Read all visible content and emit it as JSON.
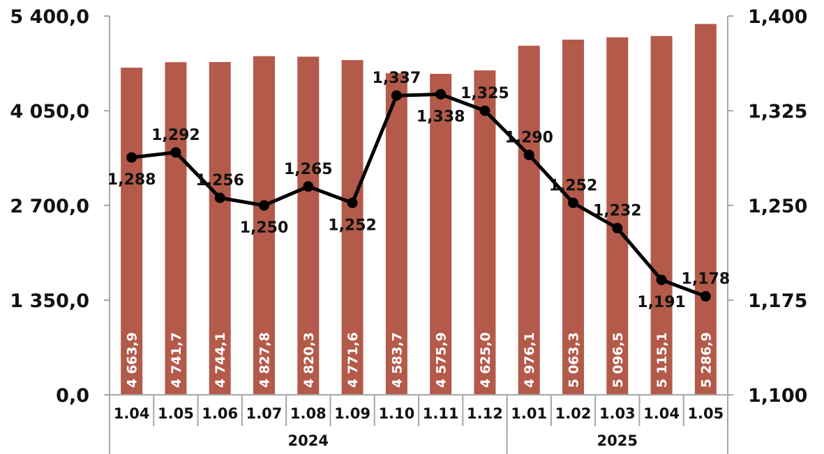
{
  "chart_data": {
    "type": "bar+line",
    "categories": [
      "1.04",
      "1.05",
      "1.06",
      "1.07",
      "1.08",
      "1.09",
      "1.10",
      "1.11",
      "1.12",
      "1.01",
      "1.02",
      "1.03",
      "1.04",
      "1.05"
    ],
    "groups": [
      {
        "label": "2024",
        "count": 9
      },
      {
        "label": "2025",
        "count": 5
      }
    ],
    "bar_series": {
      "values": [
        4663.9,
        4741.7,
        4744.1,
        4827.8,
        4820.3,
        4771.6,
        4583.7,
        4575.9,
        4625.0,
        4976.1,
        5063.3,
        5096.5,
        5115.1,
        5286.9
      ],
      "labels": [
        "4 663,9",
        "4 741,7",
        "4 744,1",
        "4 827,8",
        "4 820,3",
        "4 771,6",
        "4 583,7",
        "4 575,9",
        "4 625,0",
        "4 976,1",
        "5 063,3",
        "5 096,5",
        "5 115,1",
        "5 286,9"
      ],
      "color": "#b35a4a",
      "axis": "left"
    },
    "line_series": {
      "values": [
        1.288,
        1.292,
        1.256,
        1.25,
        1.265,
        1.252,
        1.337,
        1.338,
        1.325,
        1.29,
        1.252,
        1.232,
        1.191,
        1.178
      ],
      "labels": [
        "1,288",
        "1,292",
        "1,256",
        "1,250",
        "1,265",
        "1,252",
        "1,337",
        "1,338",
        "1,325",
        "1,290",
        "1,252",
        "1,232",
        "1,191",
        "1,178"
      ],
      "label_position": [
        "below",
        "above",
        "above",
        "below",
        "above",
        "below",
        "above",
        "below",
        "above",
        "above",
        "above",
        "above",
        "below",
        "above"
      ],
      "color": "#000000",
      "axis": "right"
    },
    "y_left": {
      "min": 0,
      "max": 5400,
      "ticks": [
        0,
        1350,
        2700,
        4050,
        5400
      ],
      "tick_labels": [
        "0,0",
        "1 350,0",
        "2 700,0",
        "4 050,0",
        "5 400,0"
      ]
    },
    "y_right": {
      "min": 1.1,
      "max": 1.4,
      "ticks": [
        1.1,
        1.175,
        1.25,
        1.325,
        1.4
      ],
      "tick_labels": [
        "1,100",
        "1,175",
        "1,250",
        "1,325",
        "1,400"
      ]
    },
    "title": "",
    "xlabel": "",
    "ylabel": "",
    "grid": false,
    "legend": "none"
  }
}
